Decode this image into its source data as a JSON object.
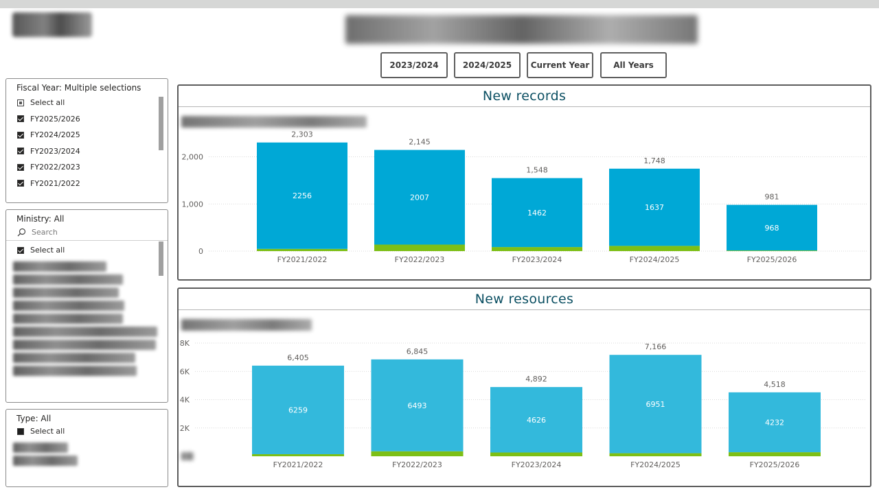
{
  "header": {
    "logo_name": "logo-redacted",
    "title_redacted": true
  },
  "period_buttons": [
    "2023/2024",
    "2024/2025",
    "Current Year",
    "All Years"
  ],
  "slicers": {
    "fiscal_year": {
      "title": "Fiscal Year: Multiple selections",
      "select_all": "Select all",
      "items": [
        "FY2025/2026",
        "FY2024/2025",
        "FY2023/2024",
        "FY2022/2023",
        "FY2021/2022"
      ]
    },
    "ministry": {
      "title": "Ministry: All",
      "search_placeholder": "Search",
      "select_all": "Select all"
    },
    "type": {
      "title": "Type: All",
      "select_all": "Select all"
    }
  },
  "colors": {
    "bar_records": "#00a8d6",
    "bar_resources": "#33b9dc",
    "bar_secondary": "#7dbf16",
    "title_text": "#0b4f62"
  },
  "chart_data": [
    {
      "type": "bar",
      "title": "New records",
      "categories": [
        "FY2021/2022",
        "FY2022/2023",
        "FY2023/2024",
        "FY2024/2025",
        "FY2025/2026"
      ],
      "series": [
        {
          "values": [
            2256,
            2007,
            1462,
            1637,
            968
          ]
        },
        {
          "values": [
            47,
            138,
            86,
            111,
            13
          ]
        }
      ],
      "totals": [
        2303,
        2145,
        1548,
        1748,
        981
      ],
      "y_ticks": [
        "0",
        "1,000",
        "2,000"
      ],
      "total_labels": [
        "2,303",
        "2,145",
        "1,548",
        "1,748",
        "981"
      ],
      "ylim": [
        0,
        2400
      ],
      "grid": true
    },
    {
      "type": "bar",
      "title": "New resources",
      "categories": [
        "FY2021/2022",
        "FY2022/2023",
        "FY2023/2024",
        "FY2024/2025",
        "FY2025/2026"
      ],
      "series": [
        {
          "values": [
            6259,
            6493,
            4626,
            6951,
            4232
          ]
        },
        {
          "values": [
            146,
            352,
            266,
            215,
            286
          ]
        }
      ],
      "totals": [
        6405,
        6845,
        4892,
        7166,
        4518
      ],
      "y_ticks": [
        "2K",
        "4K",
        "6K",
        "8K"
      ],
      "total_labels": [
        "6,405",
        "6,845",
        "4,892",
        "7,166",
        "4,518"
      ],
      "ylim": [
        0,
        8000
      ],
      "grid": true
    }
  ]
}
